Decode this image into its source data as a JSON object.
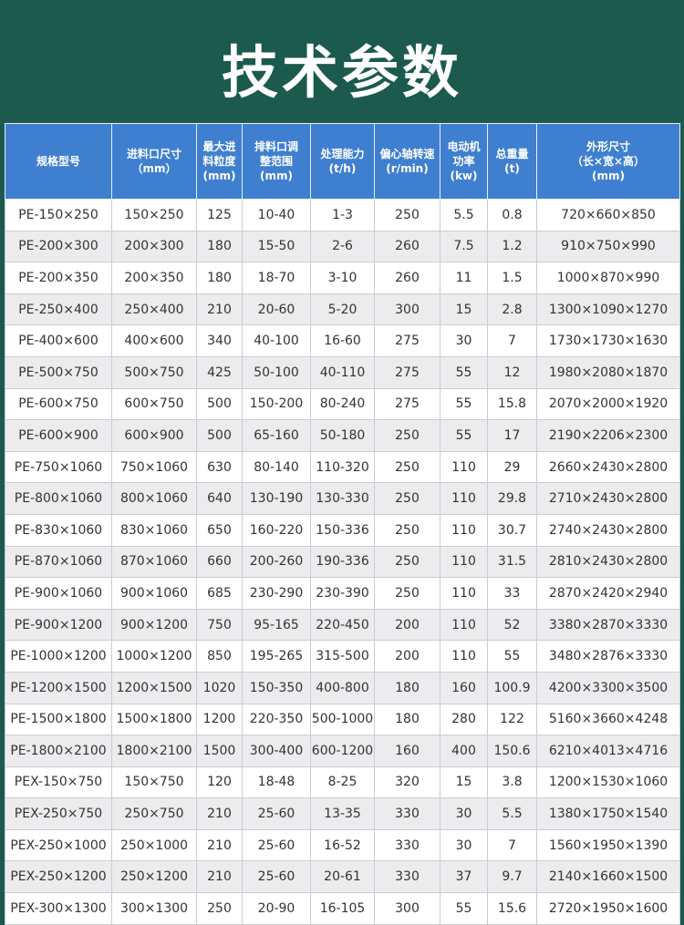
{
  "header": {
    "title": "技术参数"
  },
  "table": {
    "columns": [
      "规格型号",
      "进料口尺寸\n（mm）",
      "最大进\n料粒度\n(mm)",
      "排料口调\n整范围\n(mm)",
      "处理能力\n(t/h)",
      "偏心轴转速\n(r/min)",
      "电动机\n功率\n(kw)",
      "总重量\n(t)",
      "外形尺寸\n（长×宽×高）\n(mm)"
    ],
    "rows": [
      [
        "PE-150×250",
        "150×250",
        "125",
        "10-40",
        "1-3",
        "250",
        "5.5",
        "0.8",
        "720×660×850"
      ],
      [
        "PE-200×300",
        "200×300",
        "180",
        "15-50",
        "2-6",
        "260",
        "7.5",
        "1.2",
        "910×750×990"
      ],
      [
        "PE-200×350",
        "200×350",
        "180",
        "18-70",
        "3-10",
        "260",
        "11",
        "1.5",
        "1000×870×990"
      ],
      [
        "PE-250×400",
        "250×400",
        "210",
        "20-60",
        "5-20",
        "300",
        "15",
        "2.8",
        "1300×1090×1270"
      ],
      [
        "PE-400×600",
        "400×600",
        "340",
        "40-100",
        "16-60",
        "275",
        "30",
        "7",
        "1730×1730×1630"
      ],
      [
        "PE-500×750",
        "500×750",
        "425",
        "50-100",
        "40-110",
        "275",
        "55",
        "12",
        "1980×2080×1870"
      ],
      [
        "PE-600×750",
        "600×750",
        "500",
        "150-200",
        "80-240",
        "275",
        "55",
        "15.8",
        "2070×2000×1920"
      ],
      [
        "PE-600×900",
        "600×900",
        "500",
        "65-160",
        "50-180",
        "250",
        "55",
        "17",
        "2190×2206×2300"
      ],
      [
        "PE-750×1060",
        "750×1060",
        "630",
        "80-140",
        "110-320",
        "250",
        "110",
        "29",
        "2660×2430×2800"
      ],
      [
        "PE-800×1060",
        "800×1060",
        "640",
        "130-190",
        "130-330",
        "250",
        "110",
        "29.8",
        "2710×2430×2800"
      ],
      [
        "PE-830×1060",
        "830×1060",
        "650",
        "160-220",
        "150-336",
        "250",
        "110",
        "30.7",
        "2740×2430×2800"
      ],
      [
        "PE-870×1060",
        "870×1060",
        "660",
        "200-260",
        "190-336",
        "250",
        "110",
        "31.5",
        "2810×2430×2800"
      ],
      [
        "PE-900×1060",
        "900×1060",
        "685",
        "230-290",
        "230-390",
        "250",
        "110",
        "33",
        "2870×2420×2940"
      ],
      [
        "PE-900×1200",
        "900×1200",
        "750",
        "95-165",
        "220-450",
        "200",
        "110",
        "52",
        "3380×2870×3330"
      ],
      [
        "PE-1000×1200",
        "1000×1200",
        "850",
        "195-265",
        "315-500",
        "200",
        "110",
        "55",
        "3480×2876×3330"
      ],
      [
        "PE-1200×1500",
        "1200×1500",
        "1020",
        "150-350",
        "400-800",
        "180",
        "160",
        "100.9",
        "4200×3300×3500"
      ],
      [
        "PE-1500×1800",
        "1500×1800",
        "1200",
        "220-350",
        "500-1000",
        "180",
        "280",
        "122",
        "5160×3660×4248"
      ],
      [
        "PE-1800×2100",
        "1800×2100",
        "1500",
        "300-400",
        "600-1200",
        "160",
        "400",
        "150.6",
        "6210×4013×4716"
      ],
      [
        "PEX-150×750",
        "150×750",
        "120",
        "18-48",
        "8-25",
        "320",
        "15",
        "3.8",
        "1200×1530×1060"
      ],
      [
        "PEX-250×750",
        "250×750",
        "210",
        "25-60",
        "13-35",
        "330",
        "30",
        "5.5",
        "1380×1750×1540"
      ],
      [
        "PEX-250×1000",
        "250×1000",
        "210",
        "25-60",
        "16-52",
        "330",
        "30",
        "7",
        "1560×1950×1390"
      ],
      [
        "PEX-250×1200",
        "250×1200",
        "210",
        "25-60",
        "20-61",
        "330",
        "37",
        "9.7",
        "2140×1660×1500"
      ],
      [
        "PEX-300×1300",
        "300×1300",
        "250",
        "20-90",
        "16-105",
        "300",
        "55",
        "15.6",
        "2720×1950×1600"
      ]
    ]
  }
}
